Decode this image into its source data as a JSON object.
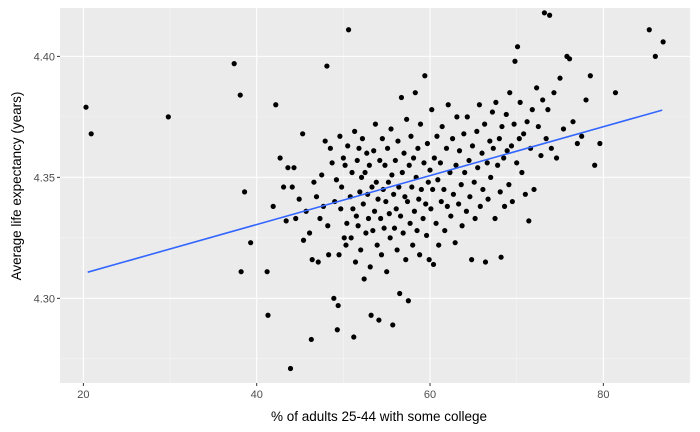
{
  "chart_data": {
    "type": "scatter",
    "title": "",
    "xlabel": "% of adults 25-44 with some college",
    "ylabel": "Average life expectancy (years)",
    "xlim": [
      17.3,
      90.0
    ],
    "ylim": [
      4.265,
      4.42
    ],
    "x_ticks": [
      20,
      40,
      60,
      80
    ],
    "x_tick_labels": [
      "20",
      "40",
      "60",
      "80"
    ],
    "y_ticks": [
      4.3,
      4.35,
      4.4
    ],
    "y_tick_labels": [
      "4.30",
      "4.35",
      "4.40"
    ],
    "grid": true,
    "colors": {
      "panel_background": "#ebebeb",
      "grid_major": "#ffffff",
      "grid_minor": "#f5f5f5",
      "points": "#000000",
      "trend_line": "#3366ff"
    },
    "trend_line": {
      "x": [
        20.5,
        86.8
      ],
      "y": [
        4.3108,
        4.3778
      ]
    },
    "points": [
      [
        20.3,
        4.379
      ],
      [
        20.9,
        4.368
      ],
      [
        29.8,
        4.375
      ],
      [
        37.4,
        4.397
      ],
      [
        38.1,
        4.384
      ],
      [
        38.2,
        4.311
      ],
      [
        38.6,
        4.344
      ],
      [
        39.3,
        4.323
      ],
      [
        41.2,
        4.311
      ],
      [
        41.3,
        4.293
      ],
      [
        41.9,
        4.338
      ],
      [
        42.2,
        4.38
      ],
      [
        42.7,
        4.358
      ],
      [
        43.1,
        4.346
      ],
      [
        43.4,
        4.332
      ],
      [
        43.6,
        4.354
      ],
      [
        43.9,
        4.271
      ],
      [
        44.1,
        4.346
      ],
      [
        44.3,
        4.354
      ],
      [
        44.5,
        4.333
      ],
      [
        44.9,
        4.341
      ],
      [
        45.3,
        4.368
      ],
      [
        45.4,
        4.324
      ],
      [
        45.7,
        4.336
      ],
      [
        46.1,
        4.327
      ],
      [
        46.3,
        4.283
      ],
      [
        46.4,
        4.316
      ],
      [
        46.6,
        4.348
      ],
      [
        46.9,
        4.342
      ],
      [
        47.1,
        4.315
      ],
      [
        47.3,
        4.333
      ],
      [
        47.5,
        4.351
      ],
      [
        47.7,
        4.338
      ],
      [
        47.9,
        4.365
      ],
      [
        48.1,
        4.396
      ],
      [
        48.2,
        4.33
      ],
      [
        48.3,
        4.318
      ],
      [
        48.5,
        4.362
      ],
      [
        48.7,
        4.356
      ],
      [
        48.9,
        4.3
      ],
      [
        49.0,
        4.34
      ],
      [
        49.2,
        4.349
      ],
      [
        49.3,
        4.287
      ],
      [
        49.4,
        4.297
      ],
      [
        49.5,
        4.318
      ],
      [
        49.6,
        4.367
      ],
      [
        49.7,
        4.337
      ],
      [
        49.8,
        4.346
      ],
      [
        50.0,
        4.358
      ],
      [
        50.1,
        4.325
      ],
      [
        50.2,
        4.355
      ],
      [
        50.3,
        4.322
      ],
      [
        50.4,
        4.331
      ],
      [
        50.5,
        4.363
      ],
      [
        50.6,
        4.411
      ],
      [
        50.8,
        4.342
      ],
      [
        50.9,
        4.325
      ],
      [
        51.0,
        4.352
      ],
      [
        51.1,
        4.337
      ],
      [
        51.2,
        4.284
      ],
      [
        51.3,
        4.369
      ],
      [
        51.4,
        4.315
      ],
      [
        51.5,
        4.334
      ],
      [
        51.6,
        4.357
      ],
      [
        51.7,
        4.33
      ],
      [
        51.8,
        4.362
      ],
      [
        51.9,
        4.344
      ],
      [
        52.0,
        4.32
      ],
      [
        52.1,
        4.35
      ],
      [
        52.2,
        4.366
      ],
      [
        52.3,
        4.339
      ],
      [
        52.4,
        4.308
      ],
      [
        52.5,
        4.352
      ],
      [
        52.6,
        4.327
      ],
      [
        52.7,
        4.36
      ],
      [
        52.8,
        4.343
      ],
      [
        52.9,
        4.333
      ],
      [
        53.0,
        4.355
      ],
      [
        53.1,
        4.313
      ],
      [
        53.2,
        4.293
      ],
      [
        53.3,
        4.346
      ],
      [
        53.4,
        4.328
      ],
      [
        53.5,
        4.361
      ],
      [
        53.6,
        4.336
      ],
      [
        53.7,
        4.372
      ],
      [
        53.8,
        4.348
      ],
      [
        53.9,
        4.322
      ],
      [
        54.0,
        4.341
      ],
      [
        54.1,
        4.291
      ],
      [
        54.2,
        4.357
      ],
      [
        54.3,
        4.333
      ],
      [
        54.4,
        4.318
      ],
      [
        54.5,
        4.366
      ],
      [
        54.6,
        4.345
      ],
      [
        54.7,
        4.329
      ],
      [
        54.8,
        4.355
      ],
      [
        54.9,
        4.34
      ],
      [
        55.0,
        4.311
      ],
      [
        55.1,
        4.362
      ],
      [
        55.2,
        4.348
      ],
      [
        55.3,
        4.335
      ],
      [
        55.4,
        4.325
      ],
      [
        55.5,
        4.37
      ],
      [
        55.6,
        4.351
      ],
      [
        55.7,
        4.289
      ],
      [
        55.8,
        4.343
      ],
      [
        55.9,
        4.329
      ],
      [
        56.0,
        4.357
      ],
      [
        56.1,
        4.337
      ],
      [
        56.2,
        4.32
      ],
      [
        56.3,
        4.365
      ],
      [
        56.4,
        4.346
      ],
      [
        56.5,
        4.302
      ],
      [
        56.6,
        4.334
      ],
      [
        56.7,
        4.383
      ],
      [
        56.8,
        4.352
      ],
      [
        56.9,
        4.327
      ],
      [
        57.0,
        4.36
      ],
      [
        57.1,
        4.342
      ],
      [
        57.2,
        4.316
      ],
      [
        57.3,
        4.374
      ],
      [
        57.4,
        4.34
      ],
      [
        57.5,
        4.299
      ],
      [
        57.6,
        4.355
      ],
      [
        57.7,
        4.331
      ],
      [
        57.8,
        4.367
      ],
      [
        57.9,
        4.346
      ],
      [
        58.0,
        4.322
      ],
      [
        58.1,
        4.358
      ],
      [
        58.2,
        4.336
      ],
      [
        58.3,
        4.385
      ],
      [
        58.4,
        4.35
      ],
      [
        58.5,
        4.328
      ],
      [
        58.6,
        4.362
      ],
      [
        58.7,
        4.341
      ],
      [
        58.8,
        4.318
      ],
      [
        58.9,
        4.372
      ],
      [
        59.0,
        4.345
      ],
      [
        59.2,
        4.333
      ],
      [
        59.3,
        4.356
      ],
      [
        59.4,
        4.392
      ],
      [
        59.5,
        4.339
      ],
      [
        59.6,
        4.326
      ],
      [
        59.7,
        4.364
      ],
      [
        59.8,
        4.348
      ],
      [
        59.9,
        4.316
      ],
      [
        60.0,
        4.353
      ],
      [
        60.1,
        4.337
      ],
      [
        60.2,
        4.378
      ],
      [
        60.3,
        4.345
      ],
      [
        60.4,
        4.314
      ],
      [
        60.5,
        4.358
      ],
      [
        60.7,
        4.331
      ],
      [
        60.8,
        4.367
      ],
      [
        60.9,
        4.349
      ],
      [
        61.0,
        4.322
      ],
      [
        61.2,
        4.356
      ],
      [
        61.3,
        4.34
      ],
      [
        61.4,
        4.371
      ],
      [
        61.6,
        4.345
      ],
      [
        61.7,
        4.328
      ],
      [
        61.9,
        4.362
      ],
      [
        62.0,
        4.338
      ],
      [
        62.1,
        4.38
      ],
      [
        62.3,
        4.352
      ],
      [
        62.4,
        4.334
      ],
      [
        62.6,
        4.366
      ],
      [
        62.7,
        4.343
      ],
      [
        62.9,
        4.323
      ],
      [
        63.0,
        4.355
      ],
      [
        63.1,
        4.375
      ],
      [
        63.3,
        4.339
      ],
      [
        63.4,
        4.361
      ],
      [
        63.6,
        4.347
      ],
      [
        63.7,
        4.33
      ],
      [
        63.9,
        4.368
      ],
      [
        64.0,
        4.352
      ],
      [
        64.2,
        4.336
      ],
      [
        64.3,
        4.375
      ],
      [
        64.5,
        4.357
      ],
      [
        64.6,
        4.342
      ],
      [
        64.8,
        4.316
      ],
      [
        64.9,
        4.363
      ],
      [
        65.1,
        4.348
      ],
      [
        65.2,
        4.333
      ],
      [
        65.4,
        4.369
      ],
      [
        65.5,
        4.354
      ],
      [
        65.7,
        4.38
      ],
      [
        65.8,
        4.338
      ],
      [
        66.0,
        4.36
      ],
      [
        66.1,
        4.345
      ],
      [
        66.3,
        4.372
      ],
      [
        66.4,
        4.315
      ],
      [
        66.6,
        4.356
      ],
      [
        66.7,
        4.341
      ],
      [
        66.9,
        4.365
      ],
      [
        67.0,
        4.35
      ],
      [
        67.2,
        4.377
      ],
      [
        67.3,
        4.362
      ],
      [
        67.5,
        4.333
      ],
      [
        67.6,
        4.381
      ],
      [
        67.8,
        4.355
      ],
      [
        68.0,
        4.366
      ],
      [
        68.1,
        4.344
      ],
      [
        68.2,
        4.317
      ],
      [
        68.3,
        4.371
      ],
      [
        68.5,
        4.358
      ],
      [
        68.6,
        4.338
      ],
      [
        68.8,
        4.376
      ],
      [
        68.9,
        4.361
      ],
      [
        69.1,
        4.347
      ],
      [
        69.2,
        4.385
      ],
      [
        69.4,
        4.363
      ],
      [
        69.5,
        4.34
      ],
      [
        69.7,
        4.372
      ],
      [
        69.8,
        4.398
      ],
      [
        70.0,
        4.356
      ],
      [
        70.1,
        4.404
      ],
      [
        70.3,
        4.366
      ],
      [
        70.4,
        4.381
      ],
      [
        70.6,
        4.352
      ],
      [
        70.8,
        4.368
      ],
      [
        71.0,
        4.343
      ],
      [
        71.2,
        4.373
      ],
      [
        71.4,
        4.332
      ],
      [
        71.6,
        4.362
      ],
      [
        71.8,
        4.378
      ],
      [
        72.0,
        4.345
      ],
      [
        72.3,
        4.387
      ],
      [
        72.5,
        4.371
      ],
      [
        72.8,
        4.359
      ],
      [
        73.0,
        4.382
      ],
      [
        73.2,
        4.418
      ],
      [
        73.4,
        4.366
      ],
      [
        73.6,
        4.378
      ],
      [
        73.8,
        4.417
      ],
      [
        74.0,
        4.362
      ],
      [
        74.3,
        4.385
      ],
      [
        74.6,
        4.358
      ],
      [
        75.0,
        4.391
      ],
      [
        75.4,
        4.37
      ],
      [
        75.8,
        4.4
      ],
      [
        76.1,
        4.399
      ],
      [
        76.5,
        4.373
      ],
      [
        77.0,
        4.364
      ],
      [
        77.5,
        4.367
      ],
      [
        78.0,
        4.382
      ],
      [
        78.5,
        4.392
      ],
      [
        79.0,
        4.355
      ],
      [
        79.6,
        4.364
      ],
      [
        81.4,
        4.385
      ],
      [
        85.3,
        4.411
      ],
      [
        86.0,
        4.4
      ],
      [
        86.9,
        4.406
      ]
    ]
  }
}
